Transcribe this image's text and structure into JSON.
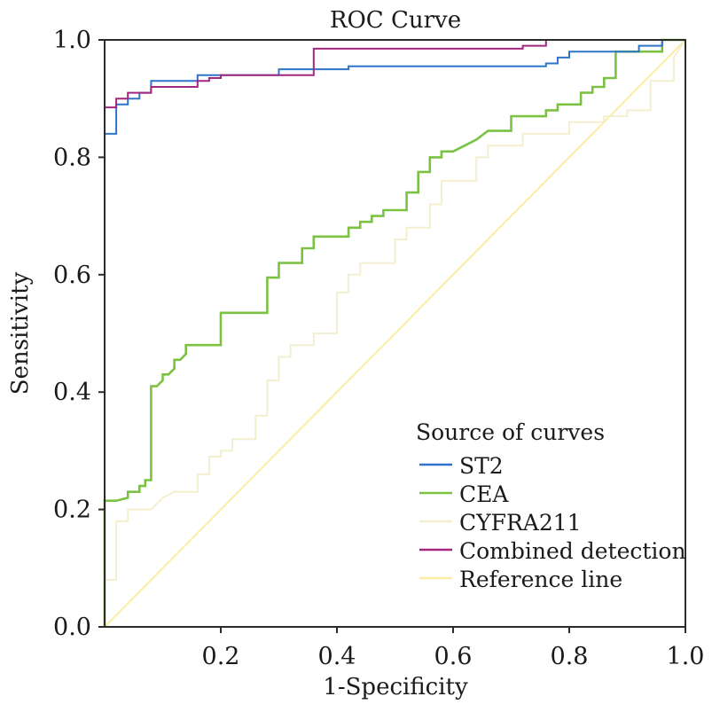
{
  "chart_data": {
    "type": "line",
    "title": "ROC Curve",
    "xlabel": "1-Specificity",
    "ylabel": "Sensitivity",
    "xlim": [
      0,
      1
    ],
    "ylim": [
      0,
      1
    ],
    "grid": false,
    "x_ticks": [
      "0.2",
      "0.4",
      "0.6",
      "0.8",
      "1.0"
    ],
    "y_ticks": [
      "0.0",
      "0.2",
      "0.4",
      "0.6",
      "0.8",
      "1.0"
    ],
    "legend": {
      "title": "Source of curves",
      "position": "bottom-right"
    },
    "series": [
      {
        "name": "ST2",
        "color": "#2f74c8",
        "points": [
          [
            0,
            0
          ],
          [
            0,
            0.84
          ],
          [
            0.02,
            0.84
          ],
          [
            0.02,
            0.89
          ],
          [
            0.04,
            0.89
          ],
          [
            0.04,
            0.9
          ],
          [
            0.06,
            0.9
          ],
          [
            0.06,
            0.91
          ],
          [
            0.08,
            0.91
          ],
          [
            0.08,
            0.93
          ],
          [
            0.16,
            0.93
          ],
          [
            0.16,
            0.94
          ],
          [
            0.3,
            0.94
          ],
          [
            0.3,
            0.95
          ],
          [
            0.42,
            0.95
          ],
          [
            0.42,
            0.955
          ],
          [
            0.76,
            0.955
          ],
          [
            0.76,
            0.96
          ],
          [
            0.78,
            0.96
          ],
          [
            0.78,
            0.97
          ],
          [
            0.8,
            0.97
          ],
          [
            0.8,
            0.98
          ],
          [
            0.92,
            0.98
          ],
          [
            0.92,
            0.99
          ],
          [
            0.96,
            0.99
          ],
          [
            0.96,
            1.0
          ],
          [
            1.0,
            1.0
          ]
        ]
      },
      {
        "name": "CEA",
        "color": "#7cc242",
        "points": [
          [
            0,
            0
          ],
          [
            0,
            0.215
          ],
          [
            0.02,
            0.215
          ],
          [
            0.04,
            0.22
          ],
          [
            0.04,
            0.23
          ],
          [
            0.06,
            0.23
          ],
          [
            0.06,
            0.24
          ],
          [
            0.07,
            0.24
          ],
          [
            0.07,
            0.25
          ],
          [
            0.08,
            0.25
          ],
          [
            0.08,
            0.41
          ],
          [
            0.09,
            0.41
          ],
          [
            0.1,
            0.42
          ],
          [
            0.1,
            0.43
          ],
          [
            0.11,
            0.43
          ],
          [
            0.12,
            0.44
          ],
          [
            0.12,
            0.455
          ],
          [
            0.13,
            0.455
          ],
          [
            0.14,
            0.465
          ],
          [
            0.14,
            0.48
          ],
          [
            0.2,
            0.48
          ],
          [
            0.2,
            0.535
          ],
          [
            0.28,
            0.535
          ],
          [
            0.28,
            0.595
          ],
          [
            0.3,
            0.595
          ],
          [
            0.3,
            0.62
          ],
          [
            0.34,
            0.62
          ],
          [
            0.34,
            0.645
          ],
          [
            0.36,
            0.645
          ],
          [
            0.36,
            0.665
          ],
          [
            0.42,
            0.665
          ],
          [
            0.42,
            0.68
          ],
          [
            0.44,
            0.68
          ],
          [
            0.44,
            0.69
          ],
          [
            0.46,
            0.69
          ],
          [
            0.46,
            0.7
          ],
          [
            0.48,
            0.7
          ],
          [
            0.48,
            0.71
          ],
          [
            0.52,
            0.71
          ],
          [
            0.52,
            0.74
          ],
          [
            0.54,
            0.74
          ],
          [
            0.54,
            0.775
          ],
          [
            0.56,
            0.775
          ],
          [
            0.56,
            0.8
          ],
          [
            0.58,
            0.8
          ],
          [
            0.58,
            0.81
          ],
          [
            0.6,
            0.81
          ],
          [
            0.62,
            0.82
          ],
          [
            0.64,
            0.83
          ],
          [
            0.66,
            0.845
          ],
          [
            0.7,
            0.845
          ],
          [
            0.7,
            0.87
          ],
          [
            0.76,
            0.87
          ],
          [
            0.76,
            0.88
          ],
          [
            0.78,
            0.88
          ],
          [
            0.78,
            0.89
          ],
          [
            0.82,
            0.89
          ],
          [
            0.82,
            0.91
          ],
          [
            0.84,
            0.91
          ],
          [
            0.84,
            0.92
          ],
          [
            0.86,
            0.92
          ],
          [
            0.86,
            0.935
          ],
          [
            0.88,
            0.935
          ],
          [
            0.88,
            0.98
          ],
          [
            0.96,
            0.98
          ],
          [
            0.96,
            1.0
          ],
          [
            1.0,
            1.0
          ]
        ]
      },
      {
        "name": "CYFRA211",
        "color": "#f3efcf",
        "points": [
          [
            0,
            0
          ],
          [
            0,
            0.08
          ],
          [
            0.02,
            0.08
          ],
          [
            0.02,
            0.18
          ],
          [
            0.04,
            0.18
          ],
          [
            0.04,
            0.2
          ],
          [
            0.08,
            0.2
          ],
          [
            0.1,
            0.22
          ],
          [
            0.12,
            0.23
          ],
          [
            0.16,
            0.23
          ],
          [
            0.16,
            0.26
          ],
          [
            0.18,
            0.26
          ],
          [
            0.18,
            0.29
          ],
          [
            0.2,
            0.29
          ],
          [
            0.2,
            0.3
          ],
          [
            0.22,
            0.3
          ],
          [
            0.22,
            0.32
          ],
          [
            0.26,
            0.32
          ],
          [
            0.26,
            0.36
          ],
          [
            0.28,
            0.36
          ],
          [
            0.28,
            0.42
          ],
          [
            0.3,
            0.42
          ],
          [
            0.3,
            0.46
          ],
          [
            0.32,
            0.46
          ],
          [
            0.32,
            0.48
          ],
          [
            0.36,
            0.48
          ],
          [
            0.36,
            0.5
          ],
          [
            0.4,
            0.5
          ],
          [
            0.4,
            0.57
          ],
          [
            0.42,
            0.57
          ],
          [
            0.42,
            0.6
          ],
          [
            0.44,
            0.6
          ],
          [
            0.44,
            0.62
          ],
          [
            0.5,
            0.62
          ],
          [
            0.5,
            0.66
          ],
          [
            0.52,
            0.66
          ],
          [
            0.52,
            0.68
          ],
          [
            0.56,
            0.68
          ],
          [
            0.56,
            0.72
          ],
          [
            0.58,
            0.72
          ],
          [
            0.58,
            0.76
          ],
          [
            0.64,
            0.76
          ],
          [
            0.64,
            0.8
          ],
          [
            0.66,
            0.8
          ],
          [
            0.66,
            0.82
          ],
          [
            0.72,
            0.82
          ],
          [
            0.72,
            0.84
          ],
          [
            0.8,
            0.84
          ],
          [
            0.8,
            0.86
          ],
          [
            0.86,
            0.86
          ],
          [
            0.86,
            0.87
          ],
          [
            0.9,
            0.87
          ],
          [
            0.9,
            0.88
          ],
          [
            0.94,
            0.88
          ],
          [
            0.94,
            0.93
          ],
          [
            0.98,
            0.93
          ],
          [
            0.98,
            0.97
          ],
          [
            1.0,
            1.0
          ]
        ]
      },
      {
        "name": "Combined detection",
        "color": "#a3267f",
        "points": [
          [
            0,
            0
          ],
          [
            0,
            0.885
          ],
          [
            0.02,
            0.885
          ],
          [
            0.02,
            0.9
          ],
          [
            0.04,
            0.9
          ],
          [
            0.04,
            0.91
          ],
          [
            0.08,
            0.91
          ],
          [
            0.08,
            0.92
          ],
          [
            0.16,
            0.92
          ],
          [
            0.16,
            0.93
          ],
          [
            0.18,
            0.93
          ],
          [
            0.18,
            0.935
          ],
          [
            0.2,
            0.935
          ],
          [
            0.2,
            0.94
          ],
          [
            0.36,
            0.94
          ],
          [
            0.36,
            0.985
          ],
          [
            0.72,
            0.985
          ],
          [
            0.72,
            0.99
          ],
          [
            0.76,
            0.99
          ],
          [
            0.76,
            1.0
          ],
          [
            1.0,
            1.0
          ]
        ]
      },
      {
        "name": "Reference line",
        "color": "#fbeda2",
        "points": [
          [
            0,
            0
          ],
          [
            1,
            1
          ]
        ]
      }
    ]
  }
}
